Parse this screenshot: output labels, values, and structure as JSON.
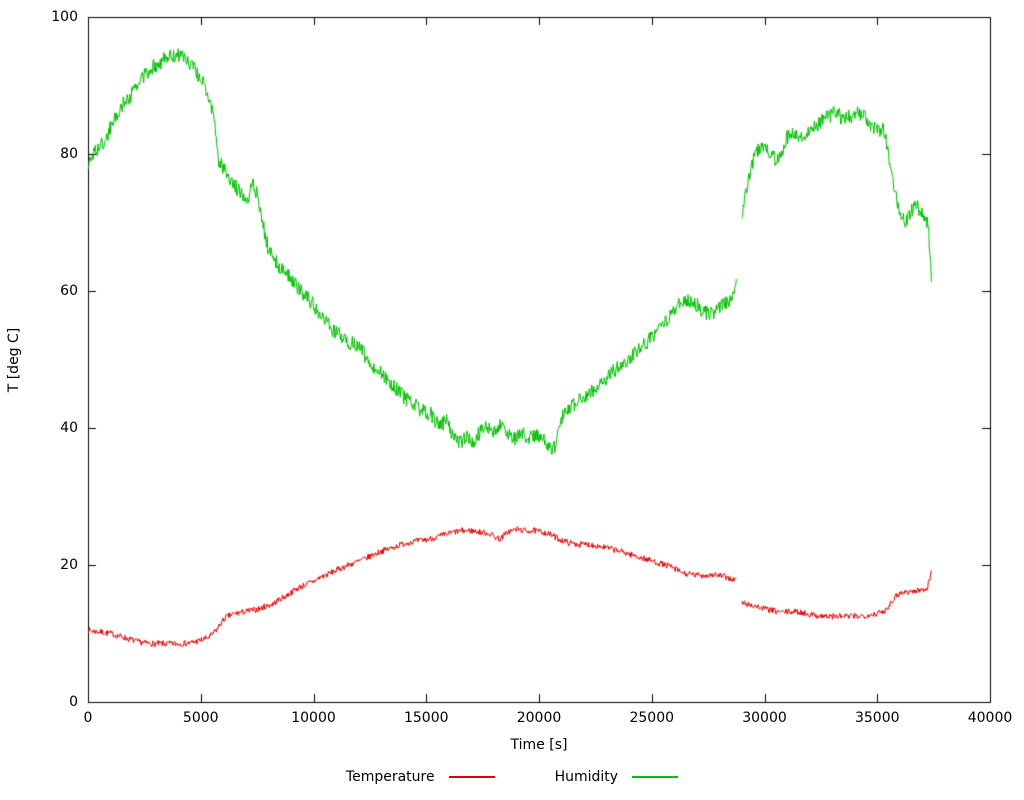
{
  "chart_data": {
    "type": "line",
    "title": "",
    "xlabel": "Time [s]",
    "ylabel": "T [deg C]",
    "xlim": [
      0,
      40000
    ],
    "ylim": [
      0,
      100
    ],
    "x_ticks": [
      0,
      5000,
      10000,
      15000,
      20000,
      25000,
      30000,
      35000,
      40000
    ],
    "y_ticks": [
      0,
      20,
      40,
      60,
      80,
      100
    ],
    "grid": false,
    "legend_position": "below-bottom-center",
    "background": "#ffffff",
    "border_color": "#000000",
    "series": [
      {
        "name": "Temperature",
        "color": "#e00000",
        "noise": 0.45,
        "segments": [
          [
            [
              0,
              10.5
            ],
            [
              300,
              10.3
            ],
            [
              600,
              10.2
            ],
            [
              1000,
              10.0
            ],
            [
              1400,
              9.6
            ],
            [
              1800,
              9.2
            ],
            [
              2200,
              8.8
            ],
            [
              2600,
              8.6
            ],
            [
              3000,
              8.5
            ],
            [
              3500,
              8.5
            ],
            [
              4000,
              8.5
            ],
            [
              4500,
              8.6
            ],
            [
              5000,
              9.0
            ],
            [
              5400,
              9.5
            ],
            [
              5700,
              10.5
            ],
            [
              5900,
              11.5
            ],
            [
              6100,
              12.3
            ],
            [
              6400,
              12.8
            ],
            [
              6700,
              13.0
            ],
            [
              7000,
              13.2
            ],
            [
              7300,
              13.4
            ],
            [
              7600,
              13.6
            ],
            [
              7900,
              14.0
            ],
            [
              8200,
              14.3
            ],
            [
              8500,
              15.0
            ],
            [
              8800,
              15.5
            ],
            [
              9100,
              16.2
            ],
            [
              9400,
              16.8
            ],
            [
              9700,
              17.2
            ],
            [
              10000,
              17.6
            ],
            [
              10300,
              18.2
            ],
            [
              10600,
              18.6
            ],
            [
              11000,
              19.2
            ],
            [
              11400,
              19.8
            ],
            [
              11800,
              20.3
            ],
            [
              12200,
              20.8
            ],
            [
              12600,
              21.4
            ],
            [
              13000,
              22.0
            ],
            [
              13400,
              22.4
            ],
            [
              13800,
              22.9
            ],
            [
              14200,
              23.3
            ],
            [
              14600,
              23.5
            ],
            [
              15000,
              23.7
            ],
            [
              15400,
              24.0
            ],
            [
              15800,
              24.4
            ],
            [
              16200,
              24.8
            ],
            [
              16600,
              25.0
            ],
            [
              17000,
              25.0
            ],
            [
              17400,
              24.8
            ],
            [
              17800,
              24.6
            ],
            [
              18100,
              24.0
            ],
            [
              18300,
              23.8
            ],
            [
              18600,
              24.8
            ],
            [
              19000,
              25.2
            ],
            [
              19400,
              25.0
            ],
            [
              19800,
              25.0
            ],
            [
              20200,
              24.8
            ],
            [
              20600,
              24.3
            ],
            [
              21000,
              23.6
            ],
            [
              21400,
              23.2
            ],
            [
              21800,
              23.0
            ],
            [
              22200,
              23.0
            ],
            [
              22600,
              22.8
            ],
            [
              23000,
              22.5
            ],
            [
              23400,
              22.2
            ],
            [
              23800,
              21.8
            ],
            [
              24200,
              21.4
            ],
            [
              24600,
              21.0
            ],
            [
              25000,
              20.6
            ],
            [
              25400,
              20.2
            ],
            [
              25800,
              19.8
            ],
            [
              26100,
              19.3
            ],
            [
              26400,
              18.8
            ],
            [
              26700,
              18.6
            ],
            [
              27000,
              18.5
            ],
            [
              27400,
              18.5
            ],
            [
              27800,
              18.6
            ],
            [
              28200,
              18.3
            ],
            [
              28500,
              18.0
            ],
            [
              28750,
              17.8
            ]
          ],
          [
            [
              29000,
              14.5
            ],
            [
              29300,
              14.2
            ],
            [
              29600,
              14.0
            ],
            [
              30000,
              13.6
            ],
            [
              30400,
              13.3
            ],
            [
              30800,
              13.1
            ],
            [
              31200,
              13.2
            ],
            [
              31600,
              13.1
            ],
            [
              32000,
              12.8
            ],
            [
              32400,
              12.6
            ],
            [
              32800,
              12.5
            ],
            [
              33200,
              12.5
            ],
            [
              33600,
              12.5
            ],
            [
              34000,
              12.5
            ],
            [
              34400,
              12.6
            ],
            [
              34800,
              12.8
            ],
            [
              35100,
              13.0
            ],
            [
              35300,
              13.2
            ],
            [
              35500,
              14.0
            ],
            [
              35700,
              15.0
            ],
            [
              35900,
              15.7
            ],
            [
              36100,
              16.0
            ],
            [
              36400,
              16.1
            ],
            [
              36700,
              16.2
            ],
            [
              37000,
              16.4
            ],
            [
              37200,
              16.6
            ],
            [
              37300,
              17.5
            ],
            [
              37400,
              19.0
            ]
          ]
        ]
      },
      {
        "name": "Humidity",
        "color": "#00c000",
        "noise": 1.1,
        "segments": [
          [
            [
              0,
              78
            ],
            [
              200,
              80
            ],
            [
              500,
              81
            ],
            [
              800,
              82
            ],
            [
              1000,
              84
            ],
            [
              1500,
              87
            ],
            [
              2000,
              89
            ],
            [
              2500,
              91.5
            ],
            [
              3000,
              93
            ],
            [
              3500,
              94
            ],
            [
              4000,
              94.5
            ],
            [
              4300,
              94
            ],
            [
              4700,
              92.5
            ],
            [
              5000,
              91
            ],
            [
              5300,
              89
            ],
            [
              5600,
              85
            ],
            [
              5800,
              79
            ],
            [
              6000,
              78
            ],
            [
              6300,
              76.5
            ],
            [
              6600,
              75
            ],
            [
              6900,
              74
            ],
            [
              7100,
              73.5
            ],
            [
              7300,
              76
            ],
            [
              7500,
              74
            ],
            [
              7800,
              69
            ],
            [
              8000,
              66
            ],
            [
              8300,
              64.5
            ],
            [
              8600,
              63
            ],
            [
              9000,
              62
            ],
            [
              9300,
              60.5
            ],
            [
              9600,
              59.5
            ],
            [
              10000,
              58
            ],
            [
              10400,
              56
            ],
            [
              10800,
              54.5
            ],
            [
              11200,
              53.5
            ],
            [
              11600,
              52.5
            ],
            [
              12000,
              52
            ],
            [
              12400,
              50
            ],
            [
              12800,
              48.5
            ],
            [
              13200,
              47.5
            ],
            [
              13600,
              46
            ],
            [
              14000,
              44.5
            ],
            [
              14400,
              43.5
            ],
            [
              14800,
              42.5
            ],
            [
              15200,
              42
            ],
            [
              15600,
              40
            ],
            [
              15900,
              41.5
            ],
            [
              16200,
              38.5
            ],
            [
              16500,
              38
            ],
            [
              16800,
              38.5
            ],
            [
              17100,
              38
            ],
            [
              17400,
              39.5
            ],
            [
              17700,
              40
            ],
            [
              18000,
              39.5
            ],
            [
              18300,
              40.5
            ],
            [
              18600,
              39
            ],
            [
              18900,
              38.5
            ],
            [
              19200,
              39.5
            ],
            [
              19500,
              38.5
            ],
            [
              19800,
              39
            ],
            [
              20100,
              38.5
            ],
            [
              20400,
              37.5
            ],
            [
              20700,
              37
            ],
            [
              20900,
              41
            ],
            [
              21200,
              42.5
            ],
            [
              21600,
              43.5
            ],
            [
              22000,
              44.5
            ],
            [
              22400,
              45.5
            ],
            [
              22800,
              46.5
            ],
            [
              23200,
              48
            ],
            [
              23600,
              49
            ],
            [
              24000,
              50
            ],
            [
              24400,
              51.5
            ],
            [
              24800,
              52.5
            ],
            [
              25200,
              54
            ],
            [
              25600,
              55.5
            ],
            [
              26000,
              57.5
            ],
            [
              26300,
              58
            ],
            [
              26700,
              58.5
            ],
            [
              27000,
              58
            ],
            [
              27300,
              57
            ],
            [
              27600,
              56.5
            ],
            [
              27900,
              57.5
            ],
            [
              28200,
              58
            ],
            [
              28500,
              59
            ],
            [
              28750,
              61
            ]
          ],
          [
            [
              29000,
              71
            ],
            [
              29200,
              75
            ],
            [
              29400,
              78
            ],
            [
              29600,
              80
            ],
            [
              29800,
              81
            ],
            [
              30000,
              81
            ],
            [
              30300,
              80
            ],
            [
              30500,
              79
            ],
            [
              30800,
              80.5
            ],
            [
              31000,
              82.5
            ],
            [
              31300,
              83
            ],
            [
              31600,
              82.5
            ],
            [
              32000,
              83.5
            ],
            [
              32400,
              84.5
            ],
            [
              32800,
              85.5
            ],
            [
              33200,
              86
            ],
            [
              33500,
              85
            ],
            [
              33800,
              85.5
            ],
            [
              34100,
              86
            ],
            [
              34400,
              85.5
            ],
            [
              34700,
              84
            ],
            [
              35000,
              83.5
            ],
            [
              35300,
              83.5
            ],
            [
              35500,
              80
            ],
            [
              35700,
              76
            ],
            [
              35900,
              73
            ],
            [
              36100,
              70.5
            ],
            [
              36300,
              70
            ],
            [
              36500,
              71.5
            ],
            [
              36700,
              73
            ],
            [
              36900,
              71.5
            ],
            [
              37100,
              71
            ],
            [
              37250,
              70
            ],
            [
              37400,
              62
            ]
          ]
        ]
      }
    ]
  }
}
